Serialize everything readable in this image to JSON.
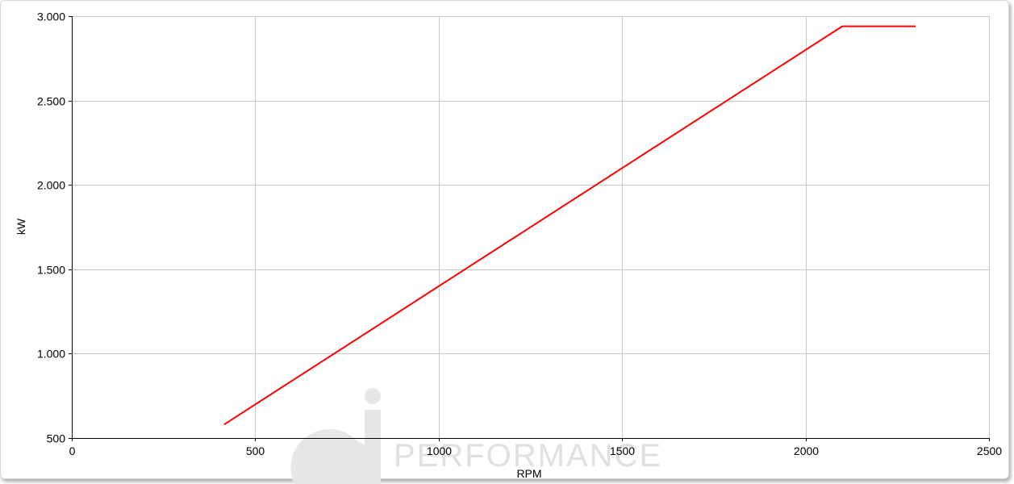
{
  "chart_data": {
    "type": "line",
    "xlabel": "RPM",
    "ylabel": "kW",
    "xlim": [
      0,
      2500
    ],
    "ylim": [
      500,
      3000
    ],
    "x_ticks": [
      0,
      500,
      1000,
      1500,
      2000,
      2500
    ],
    "x_tick_labels": [
      "0",
      "500",
      "1000",
      "1500",
      "2000",
      "2500"
    ],
    "y_ticks": [
      500,
      1000,
      1500,
      2000,
      2500,
      3000
    ],
    "y_tick_labels": [
      "500",
      "1.000",
      "1.500",
      "2.000",
      "2.500",
      "3.000"
    ],
    "grid": true,
    "legend": "none",
    "series": [
      {
        "color": "#ff0000",
        "x": [
          415,
          2100,
          2300
        ],
        "y": [
          580,
          2940,
          2940
        ]
      }
    ]
  },
  "watermark": {
    "text": "PERFORMANCE"
  },
  "colors": {
    "line": "#ff0000",
    "grid": "#c8c8c8",
    "axis": "#000000",
    "watermark": "#e0e0e0"
  }
}
